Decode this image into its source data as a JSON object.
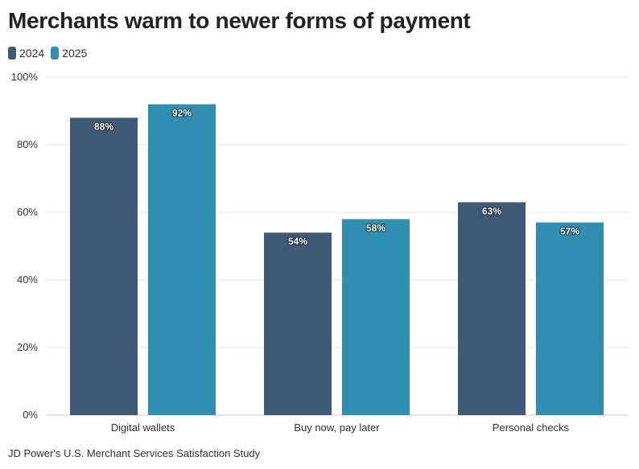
{
  "title": "Merchants warm to newer forms of payment",
  "source": "JD Power's U.S. Merchant Services Satisfaction Study",
  "colors": {
    "series_2024": "#3e5a75",
    "series_2025": "#2e8fb0",
    "grid": "#e6e6e6",
    "text": "#222222"
  },
  "chart_data": {
    "type": "bar",
    "title": "Merchants warm to newer forms of payment",
    "categories": [
      "Digital wallets",
      "Buy now, pay later",
      "Personal checks"
    ],
    "series": [
      {
        "name": "2024",
        "values": [
          88,
          54,
          63
        ],
        "labels": [
          "88%",
          "54%",
          "63%"
        ]
      },
      {
        "name": "2025",
        "values": [
          92,
          58,
          57
        ],
        "labels": [
          "92%",
          "58%",
          "57%"
        ]
      }
    ],
    "ylim": [
      0,
      100
    ],
    "yticks": [
      0,
      20,
      40,
      60,
      80,
      100
    ],
    "ytick_labels": [
      "0%",
      "20%",
      "40%",
      "60%",
      "80%",
      "100%"
    ],
    "xlabel": "",
    "ylabel": "",
    "grid": true,
    "legend_placement": "top-left"
  }
}
